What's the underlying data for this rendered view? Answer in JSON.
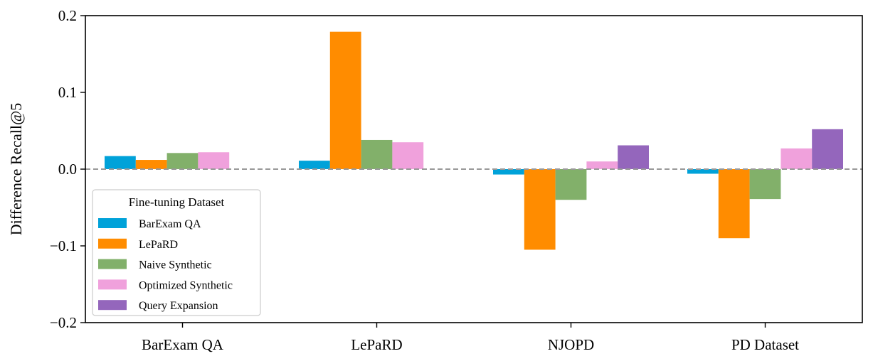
{
  "chart_data": {
    "type": "bar",
    "title": "",
    "xlabel": "",
    "ylabel": "Difference Recall@5",
    "ylim": [
      -0.2,
      0.2
    ],
    "yticks": [
      0.2,
      0.1,
      0.0,
      -0.1,
      -0.2
    ],
    "ytick_labels": [
      "0.2",
      "0.1",
      "0.0",
      "−0.1",
      "−0.2"
    ],
    "categories": [
      "BarExam QA",
      "LePaRD",
      "NJOPD",
      "PD Dataset"
    ],
    "grid": false,
    "reference_line": {
      "y": 0.0,
      "style": "dashed",
      "color": "#999999"
    },
    "legend": {
      "title": "Fine-tuning Dataset",
      "placement": "lower-left"
    },
    "series": [
      {
        "name": "BarExam QA",
        "color": "#00a2d9",
        "values": [
          0.017,
          0.011,
          -0.007,
          -0.006
        ]
      },
      {
        "name": "LePaRD",
        "color": "#ff8c00",
        "values": [
          0.012,
          0.179,
          -0.105,
          -0.09
        ]
      },
      {
        "name": "Naive Synthetic",
        "color": "#82b06a",
        "values": [
          0.021,
          0.038,
          -0.04,
          -0.039
        ]
      },
      {
        "name": "Optimized Synthetic",
        "color": "#f0a1dc",
        "values": [
          0.022,
          0.035,
          0.01,
          0.027
        ]
      },
      {
        "name": "Query Expansion",
        "color": "#9466bc",
        "values": [
          null,
          null,
          0.031,
          0.052
        ]
      }
    ]
  }
}
